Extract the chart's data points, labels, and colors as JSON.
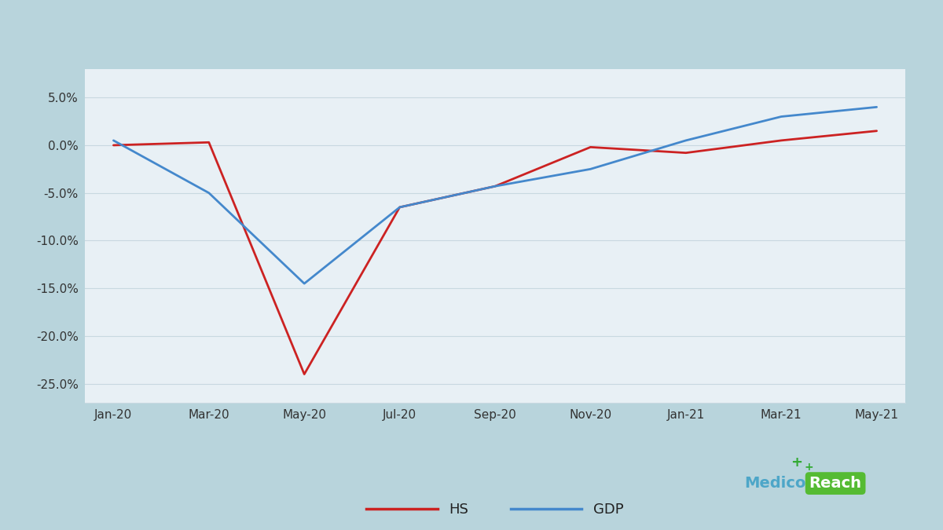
{
  "x_labels": [
    "Jan-20",
    "Mar-20",
    "May-20",
    "Jul-20",
    "Sep-20",
    "Nov-20",
    "Jan-21",
    "Mar-21",
    "May-21"
  ],
  "hs_x": [
    0,
    1,
    2,
    3,
    4,
    5,
    6,
    7,
    8
  ],
  "hs_y": [
    0.0,
    0.3,
    -24.0,
    -6.5,
    -4.3,
    -0.2,
    -0.8,
    0.5,
    1.5
  ],
  "gdp_x": [
    0,
    1,
    2,
    3,
    4,
    5,
    6,
    7,
    8
  ],
  "gdp_y": [
    0.5,
    -5.0,
    -14.5,
    -6.5,
    -4.3,
    -2.5,
    0.5,
    3.0,
    4.0
  ],
  "hs_color": "#cc2222",
  "gdp_color": "#4488cc",
  "bg_color_outer": "#b8d4dc",
  "plot_bg_color": "#e8f0f5",
  "grid_color": "#c8d8e0",
  "ylim": [
    -27,
    8
  ],
  "yticks": [
    5.0,
    0.0,
    -5.0,
    -10.0,
    -15.0,
    -20.0,
    -25.0
  ],
  "line_width": 2.0,
  "medico_color": "#4da6c8",
  "reach_bg_color": "#55bb33",
  "plus_color": "#33aa33"
}
